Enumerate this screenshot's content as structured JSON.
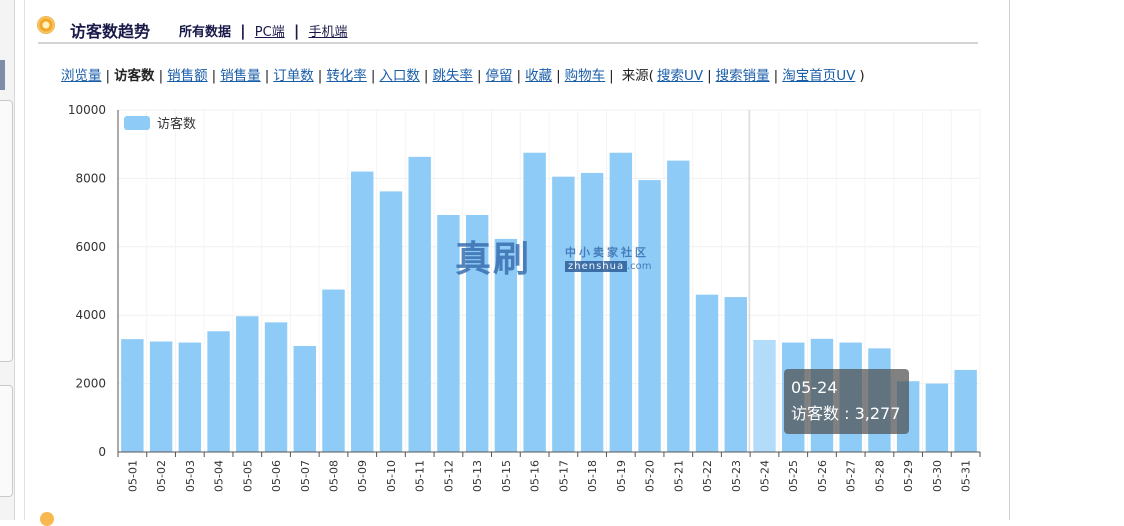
{
  "header": {
    "title": "访客数趋势",
    "scope_tabs": [
      {
        "label": "所有数据",
        "active": true
      },
      {
        "label": "PC端",
        "active": false
      },
      {
        "label": "手机端",
        "active": false
      }
    ]
  },
  "metrics": {
    "items": [
      {
        "label": "浏览量",
        "active": false
      },
      {
        "label": "访客数",
        "active": true
      },
      {
        "label": "销售额",
        "active": false
      },
      {
        "label": "销售量",
        "active": false
      },
      {
        "label": "订单数",
        "active": false
      },
      {
        "label": "转化率",
        "active": false
      },
      {
        "label": "入口数",
        "active": false
      },
      {
        "label": "跳失率",
        "active": false
      },
      {
        "label": "停留",
        "active": false
      },
      {
        "label": "收藏",
        "active": false
      },
      {
        "label": "购物车",
        "active": false
      }
    ],
    "source_prefix": "来源(",
    "source_items": [
      "搜索UV",
      "搜索销量",
      "淘宝首页UV"
    ],
    "source_suffix": ")"
  },
  "chart_data": {
    "type": "bar",
    "categories": [
      "05-01",
      "05-02",
      "05-03",
      "05-04",
      "05-05",
      "05-06",
      "05-07",
      "05-08",
      "05-09",
      "05-10",
      "05-11",
      "05-12",
      "05-13",
      "05-15",
      "05-16",
      "05-17",
      "05-18",
      "05-19",
      "05-20",
      "05-21",
      "05-22",
      "05-23",
      "05-24",
      "05-25",
      "05-26",
      "05-27",
      "05-28",
      "05-29",
      "05-30",
      "05-31"
    ],
    "series": [
      {
        "name": "访客数",
        "values": [
          3300,
          3230,
          3200,
          3530,
          3970,
          3790,
          3100,
          4750,
          8200,
          7620,
          8630,
          6930,
          6930,
          6230,
          8750,
          8050,
          8160,
          8750,
          7950,
          8520,
          4600,
          4530,
          3277,
          3200,
          3310,
          3200,
          3030,
          2070,
          2000,
          2400
        ]
      }
    ],
    "yticks": [
      "0",
      "2000",
      "4000",
      "6000",
      "8000",
      "10000"
    ],
    "ylim": [
      0,
      10000
    ],
    "legend_position": "top-left",
    "grid": true,
    "highlight_index": 22,
    "colors": {
      "bar": "#8ecbf7",
      "bar_highlight": "#b3dcfa"
    }
  },
  "tooltip": {
    "date": "05-24",
    "label": "访客数 : 3,277"
  },
  "watermark": {
    "big": "真刷",
    "small": "中小卖家社区",
    "url": "zhenshua",
    "url_tail": ".com"
  }
}
